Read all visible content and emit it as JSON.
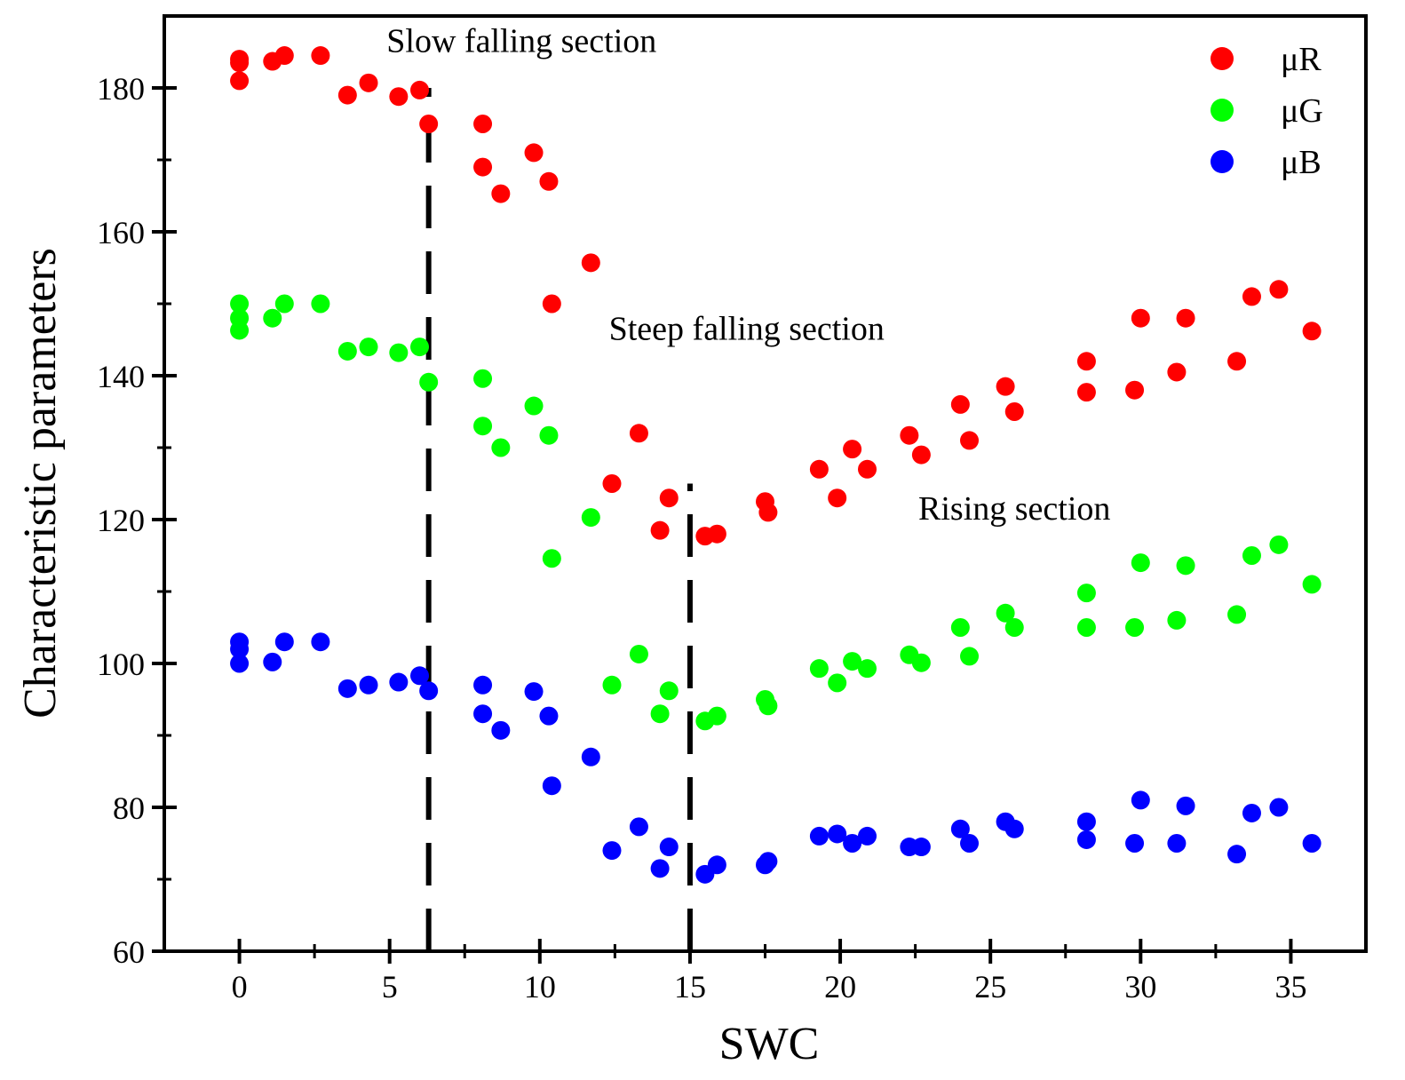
{
  "chart_data": {
    "type": "scatter",
    "xlabel": "SWC",
    "ylabel": "Characteristic parameters",
    "xlim": [
      -2.5,
      37.5
    ],
    "ylim": [
      60,
      190
    ],
    "xticks": [
      0,
      5,
      10,
      15,
      20,
      25,
      30,
      35
    ],
    "xtick_labels": [
      "0",
      "5",
      "10",
      "15",
      "20",
      "25",
      "30",
      "35"
    ],
    "yticks": [
      60,
      80,
      100,
      120,
      140,
      160,
      180
    ],
    "ytick_labels": [
      "60",
      "80",
      "100",
      "120",
      "140",
      "160",
      "180"
    ],
    "legend_position": "top-right",
    "dividers": [
      {
        "name": "slow-steep-boundary",
        "x": 6.3,
        "y_from": 60,
        "y_to": 180
      },
      {
        "name": "steep-rising-boundary",
        "x": 15.0,
        "y_from": 60,
        "y_to": 125
      }
    ],
    "annotations": [
      {
        "name": "slow-falling-label",
        "text": "Slow falling section",
        "x": 4.9,
        "y": 185
      },
      {
        "name": "steep-falling-label",
        "text": "Steep falling section",
        "x": 12.3,
        "y": 145
      },
      {
        "name": "rising-label",
        "text": "Rising section",
        "x": 22.6,
        "y": 120
      }
    ],
    "series": [
      {
        "name": "μR",
        "color": "#ff0000",
        "points": [
          [
            0.0,
            184
          ],
          [
            0.0,
            183.5
          ],
          [
            0.0,
            181
          ],
          [
            1.1,
            183.7
          ],
          [
            1.5,
            184.5
          ],
          [
            2.7,
            184.5
          ],
          [
            3.6,
            179
          ],
          [
            4.3,
            180.7
          ],
          [
            5.3,
            178.8
          ],
          [
            6.0,
            179.7
          ],
          [
            6.3,
            175
          ],
          [
            8.1,
            175
          ],
          [
            8.1,
            169
          ],
          [
            8.7,
            165.3
          ],
          [
            9.8,
            171
          ],
          [
            10.3,
            167
          ],
          [
            10.4,
            150
          ],
          [
            11.7,
            155.7
          ],
          [
            12.4,
            125
          ],
          [
            13.3,
            132
          ],
          [
            14.0,
            118.5
          ],
          [
            14.3,
            123
          ],
          [
            15.5,
            117.7
          ],
          [
            15.9,
            118
          ],
          [
            17.5,
            122.5
          ],
          [
            17.6,
            121
          ],
          [
            19.3,
            127
          ],
          [
            19.9,
            123
          ],
          [
            20.4,
            129.8
          ],
          [
            20.9,
            127
          ],
          [
            22.3,
            131.7
          ],
          [
            22.7,
            129
          ],
          [
            24.0,
            136
          ],
          [
            24.3,
            131
          ],
          [
            25.5,
            138.5
          ],
          [
            25.8,
            135
          ],
          [
            28.2,
            142
          ],
          [
            28.2,
            137.7
          ],
          [
            29.8,
            138
          ],
          [
            30.0,
            148
          ],
          [
            31.2,
            140.5
          ],
          [
            31.5,
            148
          ],
          [
            33.2,
            142
          ],
          [
            33.7,
            151
          ],
          [
            34.6,
            152
          ],
          [
            35.7,
            146.2
          ]
        ]
      },
      {
        "name": "μG",
        "color": "#00ff00",
        "points": [
          [
            0.0,
            150
          ],
          [
            0.0,
            148
          ],
          [
            0.0,
            146.3
          ],
          [
            1.1,
            148
          ],
          [
            1.5,
            150
          ],
          [
            2.7,
            150
          ],
          [
            3.6,
            143.4
          ],
          [
            4.3,
            144
          ],
          [
            5.3,
            143.2
          ],
          [
            6.0,
            144
          ],
          [
            6.3,
            139.1
          ],
          [
            8.1,
            139.6
          ],
          [
            8.1,
            133
          ],
          [
            8.7,
            130
          ],
          [
            9.8,
            135.8
          ],
          [
            10.3,
            131.7
          ],
          [
            10.4,
            114.6
          ],
          [
            11.7,
            120.3
          ],
          [
            12.4,
            97
          ],
          [
            13.3,
            101.3
          ],
          [
            14.0,
            93
          ],
          [
            14.3,
            96.2
          ],
          [
            15.5,
            92
          ],
          [
            15.9,
            92.7
          ],
          [
            17.5,
            95
          ],
          [
            17.6,
            94.1
          ],
          [
            19.3,
            99.3
          ],
          [
            19.9,
            97.3
          ],
          [
            20.4,
            100.3
          ],
          [
            20.9,
            99.3
          ],
          [
            22.3,
            101.2
          ],
          [
            22.7,
            100.1
          ],
          [
            24.0,
            105
          ],
          [
            24.3,
            101
          ],
          [
            25.5,
            107
          ],
          [
            25.8,
            105
          ],
          [
            28.2,
            109.8
          ],
          [
            28.2,
            105
          ],
          [
            29.8,
            105
          ],
          [
            30.0,
            114
          ],
          [
            31.2,
            106
          ],
          [
            31.5,
            113.6
          ],
          [
            33.2,
            106.8
          ],
          [
            33.7,
            115
          ],
          [
            34.6,
            116.5
          ],
          [
            35.7,
            111
          ]
        ]
      },
      {
        "name": "μB",
        "color": "#0000ff",
        "points": [
          [
            0.0,
            103
          ],
          [
            0.0,
            102
          ],
          [
            0.0,
            100
          ],
          [
            1.1,
            100.2
          ],
          [
            1.5,
            103
          ],
          [
            2.7,
            103
          ],
          [
            3.6,
            96.5
          ],
          [
            4.3,
            97
          ],
          [
            5.3,
            97.4
          ],
          [
            6.0,
            98.3
          ],
          [
            6.3,
            96.2
          ],
          [
            8.1,
            97
          ],
          [
            8.1,
            93
          ],
          [
            8.7,
            90.7
          ],
          [
            9.8,
            96.1
          ],
          [
            10.3,
            92.7
          ],
          [
            10.4,
            83
          ],
          [
            11.7,
            87
          ],
          [
            12.4,
            74
          ],
          [
            13.3,
            77.3
          ],
          [
            14.0,
            71.5
          ],
          [
            14.3,
            74.5
          ],
          [
            15.5,
            70.7
          ],
          [
            15.9,
            72
          ],
          [
            17.5,
            72
          ],
          [
            17.6,
            72.5
          ],
          [
            19.3,
            76
          ],
          [
            19.9,
            76.3
          ],
          [
            20.4,
            75
          ],
          [
            20.9,
            76
          ],
          [
            22.3,
            74.5
          ],
          [
            22.7,
            74.5
          ],
          [
            24.0,
            77
          ],
          [
            24.3,
            75
          ],
          [
            25.5,
            78
          ],
          [
            25.8,
            77
          ],
          [
            28.2,
            78
          ],
          [
            28.2,
            75.5
          ],
          [
            29.8,
            75
          ],
          [
            30.0,
            81
          ],
          [
            31.2,
            75
          ],
          [
            31.5,
            80.2
          ],
          [
            33.2,
            73.5
          ],
          [
            33.7,
            79.2
          ],
          [
            34.6,
            80
          ],
          [
            35.7,
            75
          ]
        ]
      }
    ]
  }
}
